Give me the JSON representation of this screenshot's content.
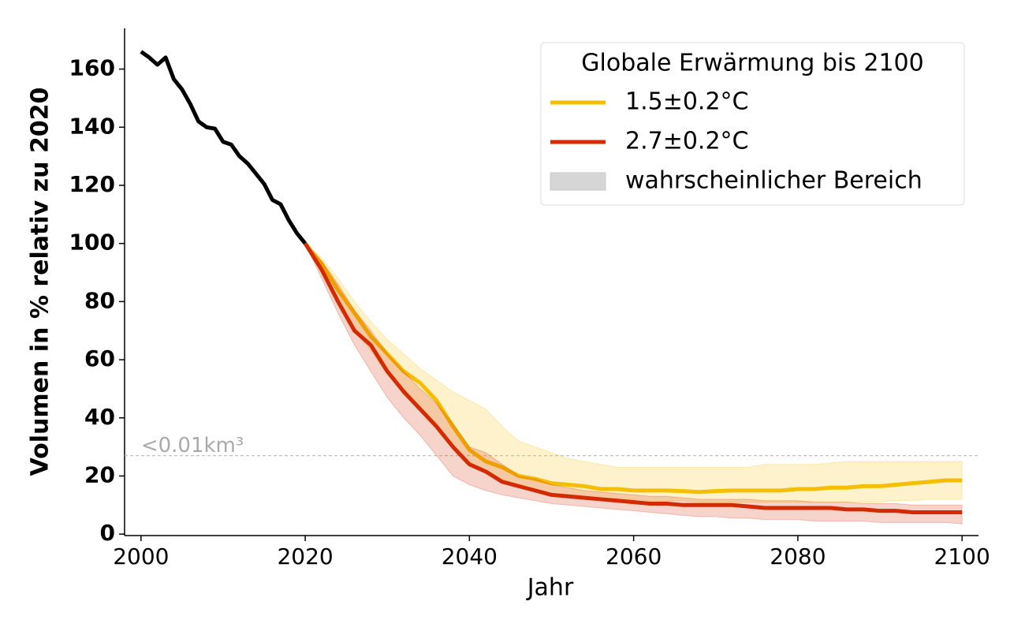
{
  "chart_data": {
    "type": "line",
    "xlabel": "Jahr",
    "ylabel": "Volumen in % relativ zu 2020",
    "xlim": [
      1998,
      2102
    ],
    "ylim": [
      -0.5,
      174
    ],
    "xticks": [
      2000,
      2020,
      2040,
      2060,
      2080,
      2100
    ],
    "yticks": [
      0,
      20,
      40,
      60,
      80,
      100,
      120,
      140,
      160
    ],
    "legend_title": "Globale Erwärmung bis 2100",
    "band_label": "wahrscheinlicher Bereich",
    "legend_loc": "upper right",
    "threshold": {
      "value": 27,
      "label": "<0.01km³",
      "color": "#bbbbbb"
    },
    "series": [
      {
        "color": "#000000",
        "x": [
          2000,
          2001,
          2002,
          2003,
          2004,
          2005,
          2006,
          2007,
          2008,
          2009,
          2010,
          2011,
          2012,
          2013,
          2014,
          2015,
          2016,
          2017,
          2018,
          2019,
          2020
        ],
        "values": [
          166,
          164,
          161.5,
          164,
          156.5,
          153,
          148,
          142,
          140,
          139.5,
          135,
          134,
          130,
          127.5,
          124,
          120.5,
          115,
          113.5,
          108,
          103.5,
          100
        ]
      },
      {
        "name": "1.5±0.2°C",
        "color": "#f5be00",
        "x": [
          2020,
          2022,
          2024,
          2026,
          2028,
          2030,
          2032,
          2034,
          2036,
          2038,
          2040,
          2042,
          2044,
          2046,
          2048,
          2050,
          2052,
          2054,
          2056,
          2058,
          2060,
          2062,
          2064,
          2066,
          2068,
          2070,
          2072,
          2074,
          2076,
          2078,
          2080,
          2082,
          2084,
          2086,
          2088,
          2090,
          2092,
          2094,
          2096,
          2098,
          2100
        ],
        "values": [
          100,
          93,
          84,
          76,
          68,
          62,
          56,
          52,
          46,
          37,
          29,
          25,
          23,
          20,
          19,
          17.5,
          17,
          16.5,
          15.5,
          15.5,
          15,
          15,
          15,
          14.8,
          14.5,
          14.8,
          15,
          15,
          15,
          15,
          15.5,
          15.5,
          16,
          16,
          16.5,
          16.5,
          17,
          17.5,
          18,
          18.5,
          18.5
        ],
        "lower": [
          100,
          90,
          80,
          70,
          63,
          55,
          50,
          44,
          38,
          30,
          24,
          21,
          19,
          17,
          15.5,
          14,
          13.5,
          13,
          12.5,
          12,
          12,
          11.5,
          11.5,
          11.5,
          11,
          11,
          11,
          11,
          11,
          11,
          11,
          11,
          11,
          11,
          11,
          11,
          11.5,
          11.5,
          12,
          12,
          12
        ],
        "upper": [
          100,
          95,
          88,
          80,
          73,
          67,
          62,
          57,
          53,
          49,
          46,
          43,
          37,
          32,
          30,
          28,
          26,
          25,
          24,
          23,
          23,
          23,
          23,
          23,
          23,
          23,
          23,
          23,
          24,
          24,
          24,
          24,
          24.5,
          25,
          25,
          25,
          25,
          25,
          25,
          25,
          25
        ]
      },
      {
        "name": "2.7±0.2°C",
        "color": "#d42a00",
        "x": [
          2020,
          2022,
          2024,
          2026,
          2028,
          2030,
          2032,
          2034,
          2036,
          2038,
          2040,
          2042,
          2044,
          2046,
          2048,
          2050,
          2052,
          2054,
          2056,
          2058,
          2060,
          2062,
          2064,
          2066,
          2068,
          2070,
          2072,
          2074,
          2076,
          2078,
          2080,
          2082,
          2084,
          2086,
          2088,
          2090,
          2092,
          2094,
          2096,
          2098,
          2100
        ],
        "values": [
          100,
          91,
          80,
          70,
          65,
          56,
          49,
          43,
          37,
          30,
          24,
          21.5,
          18,
          16.5,
          15,
          13.5,
          13,
          12.5,
          12,
          11.5,
          11,
          10.5,
          10.5,
          10,
          10,
          10,
          10,
          9.5,
          9,
          9,
          9,
          9,
          9,
          8.5,
          8.5,
          8,
          8,
          7.5,
          7.5,
          7.5,
          7.5
        ],
        "lower": [
          100,
          88,
          76,
          65,
          56,
          47,
          40,
          34,
          27,
          20,
          17,
          15,
          13.5,
          12.5,
          11.5,
          10.5,
          10,
          9.5,
          9,
          8.5,
          8,
          7.5,
          7,
          6.5,
          6,
          6,
          5.5,
          5.5,
          5,
          5,
          5,
          4.5,
          4.5,
          4.5,
          4.5,
          4,
          4,
          4,
          4,
          4,
          3.5
        ],
        "upper": [
          100,
          94,
          86,
          77,
          70,
          62,
          56,
          50,
          45,
          38,
          30,
          28,
          24,
          20,
          19,
          17,
          16,
          15,
          14.5,
          14,
          13.5,
          13,
          13,
          12.5,
          12,
          12,
          12,
          12,
          11.5,
          11.5,
          11.5,
          11,
          11,
          11,
          10.5,
          10.5,
          10.5,
          10,
          10,
          10,
          10
        ]
      }
    ]
  }
}
